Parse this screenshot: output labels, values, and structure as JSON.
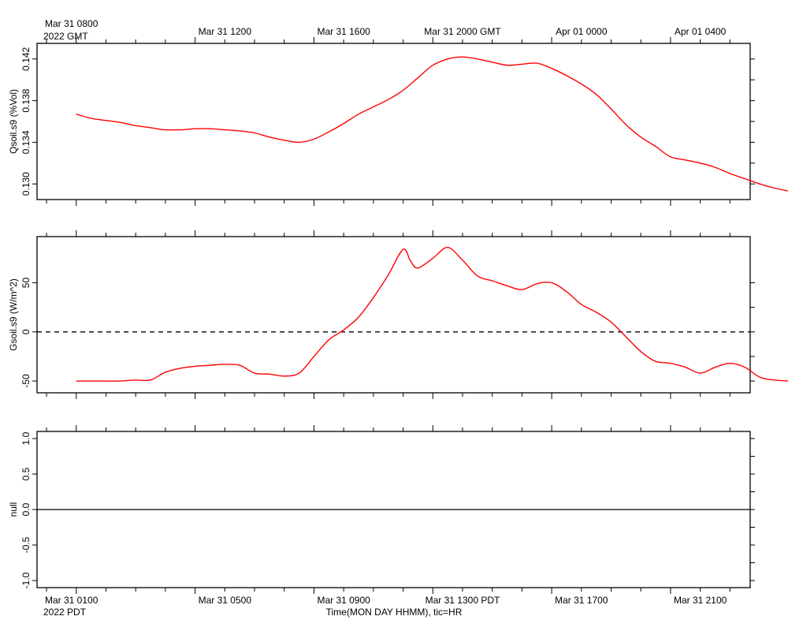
{
  "top_axis": {
    "first_label": "Mar 31 0800",
    "year_label": "2022 GMT",
    "labels": [
      "Mar 31 1200",
      "Mar 31 1600",
      "Mar 31 2000 GMT",
      "Apr 01 0000",
      "Apr 01 0400"
    ]
  },
  "bottom_axis": {
    "labels": [
      "Mar 31 0100",
      "Mar 31 0500",
      "Mar 31 0900",
      "Mar 31 1300 PDT",
      "Mar 31 1700",
      "Mar 31 2100"
    ],
    "year_label": "2022 PDT",
    "title": "Time(MON DAY HHMM), tic=HR"
  },
  "colors": {
    "series": "#ff0000",
    "axis": "#000000"
  },
  "chart_data": [
    {
      "type": "line",
      "ylabel": "Qsoil.s9 (%Vol)",
      "ylim": [
        0.1285,
        0.1435
      ],
      "yticks": [
        "0.130",
        "0.134",
        "0.138",
        "0.142"
      ],
      "x_hours_pdt": [
        0,
        0.5,
        1,
        1.5,
        2,
        2.5,
        3,
        3.5,
        4,
        4.5,
        5,
        5.5,
        6,
        6.5,
        7,
        7.5,
        8,
        8.5,
        9,
        9.5,
        10,
        10.5,
        11,
        11.5,
        12,
        12.5,
        13,
        13.5,
        14,
        14.5,
        15,
        15.5,
        16,
        16.5,
        17,
        17.5,
        18,
        18.5,
        19,
        19.5,
        20,
        20.5,
        21,
        21.5,
        22,
        22.5,
        23,
        23.5,
        24
      ],
      "series": [
        {
          "values": [
            0.1367,
            0.1363,
            0.1361,
            0.1359,
            0.1356,
            0.1354,
            0.1352,
            0.1352,
            0.1353,
            0.1353,
            0.1352,
            0.1351,
            0.1349,
            0.1345,
            0.1342,
            0.134,
            0.1343,
            0.135,
            0.1358,
            0.1367,
            0.1374,
            0.1381,
            0.139,
            0.1402,
            0.1414,
            0.142,
            0.1422,
            0.142,
            0.1417,
            0.1414,
            0.1415,
            0.1416,
            0.1411,
            0.1404,
            0.1396,
            0.1386,
            0.1372,
            0.1357,
            0.1345,
            0.1336,
            0.1326,
            0.1323,
            0.132,
            0.1316,
            0.131,
            0.1305,
            0.13,
            0.1296,
            0.1293
          ]
        }
      ]
    },
    {
      "type": "line",
      "ylabel": "Gsoil.s9 (W/m^2)",
      "ylim": [
        -62,
        97
      ],
      "yticks": [
        "-50",
        "0",
        "50"
      ],
      "reference_line": 0,
      "x_hours_pdt": [
        0,
        0.5,
        1,
        1.5,
        2,
        2.5,
        3,
        3.5,
        4,
        4.5,
        5,
        5.5,
        6,
        6.5,
        7,
        7.5,
        8,
        8.5,
        9,
        9.5,
        10,
        10.5,
        11,
        11.25,
        11.5,
        12,
        12.5,
        13,
        13.5,
        14,
        14.5,
        15,
        15.5,
        16,
        16.5,
        17,
        17.5,
        18,
        18.5,
        19,
        19.5,
        20,
        20.5,
        21,
        21.5,
        22,
        22.5,
        23,
        23.5,
        24
      ],
      "series": [
        {
          "values": [
            -50,
            -50,
            -50,
            -50,
            -49,
            -49,
            -41,
            -37,
            -35,
            -34,
            -33,
            -34,
            -42,
            -43,
            -45,
            -42,
            -25,
            -8,
            2,
            15,
            35,
            58,
            84,
            72,
            65,
            75,
            86,
            73,
            57,
            52,
            47,
            43,
            49,
            50,
            41,
            28,
            20,
            10,
            -5,
            -20,
            -30,
            -32,
            -36,
            -42,
            -36,
            -32,
            -36,
            -46,
            -49,
            -50
          ]
        }
      ]
    },
    {
      "type": "line",
      "ylabel": "null",
      "ylim": [
        -1.1,
        1.1
      ],
      "yticks": [
        "-1.0",
        "-0.5",
        "0.0",
        "0.5",
        "1.0"
      ],
      "reference_line": 0,
      "series": []
    }
  ]
}
